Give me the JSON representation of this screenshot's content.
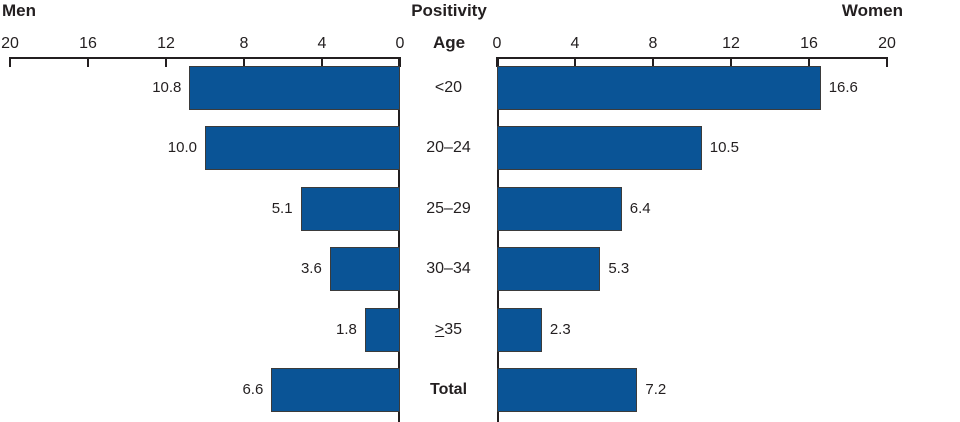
{
  "headers": {
    "left": "Men",
    "center": "Positivity",
    "right": "Women",
    "age": "Age"
  },
  "chart_data": {
    "type": "bar",
    "layout": "bilateral-horizontal-pyramid",
    "title": "Positivity",
    "center_label": "Age",
    "categories": [
      "<20",
      "20–24",
      "25–29",
      "30–34",
      "≥35",
      "Total"
    ],
    "series": [
      {
        "name": "Men",
        "side": "left",
        "values": [
          10.8,
          10.0,
          5.1,
          3.6,
          1.8,
          6.6
        ]
      },
      {
        "name": "Women",
        "side": "right",
        "values": [
          16.6,
          10.5,
          6.4,
          5.3,
          2.3,
          7.2
        ]
      }
    ],
    "xlim": [
      0,
      20
    ],
    "ticks": [
      0,
      4,
      8,
      12,
      16,
      20
    ],
    "grid": false,
    "value_labels": true,
    "bold_category": "Total",
    "bar_color": "#0a5496",
    "bar_border_color": "#3b3b3b",
    "axis_color": "#231f20",
    "text_color": "#231f20"
  }
}
